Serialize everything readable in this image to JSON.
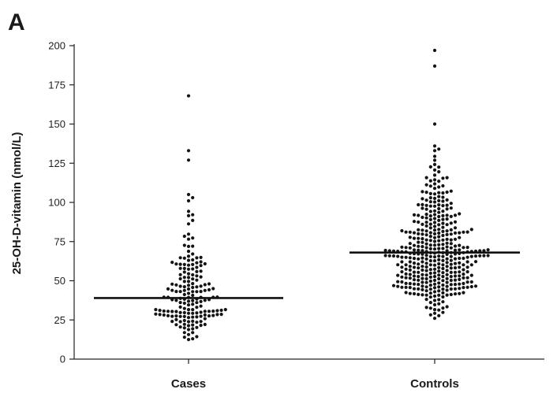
{
  "panel_label": "A",
  "chart_data": {
    "type": "scatter",
    "title": "",
    "xlabel": "",
    "ylabel": "25-OH-D-vitamin (nmol/L)",
    "ylim": [
      0,
      200
    ],
    "yticks": [
      0,
      25,
      50,
      75,
      100,
      125,
      150,
      175,
      200
    ],
    "categories": [
      "Cases",
      "Controls"
    ],
    "series": [
      {
        "name": "Cases",
        "median": 39,
        "n": 172,
        "extreme_values": [
          168,
          133,
          127,
          105,
          103,
          101
        ]
      },
      {
        "name": "Controls",
        "median": 68,
        "n": 396,
        "extreme_values": [
          197,
          187,
          150,
          136,
          134,
          133
        ]
      }
    ],
    "colors": {
      "points": "#141414",
      "axis": "#222222",
      "median_line": "#111111"
    }
  }
}
